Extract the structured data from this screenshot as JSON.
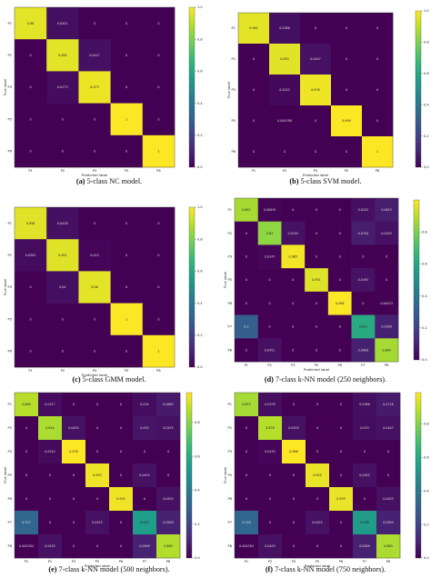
{
  "colormap": {
    "name": "viridis",
    "stops": [
      "#440154",
      "#482878",
      "#3e4989",
      "#31688e",
      "#26828e",
      "#1f9e89",
      "#35b779",
      "#6ece58",
      "#b5de2b",
      "#fde725"
    ]
  },
  "chart_data": [
    {
      "type": "heatmap",
      "caption_letter": "(a)",
      "caption": "5-class NC model.",
      "xlabel": "Predicted label",
      "ylabel": "True label",
      "labels": [
        "P1",
        "P2",
        "P3",
        "P5",
        "P6"
      ],
      "matrix": [
        [
          0.96,
          0.0401,
          0,
          0,
          0
        ],
        [
          0,
          0.958,
          0.0417,
          0,
          0
        ],
        [
          0,
          0.0273,
          0.973,
          0,
          0
        ],
        [
          0,
          0,
          0,
          1,
          0
        ],
        [
          0,
          0,
          0,
          0,
          1
        ]
      ],
      "cell_text": [
        [
          "0.96",
          "0.0401",
          "0",
          "0",
          "0"
        ],
        [
          "0",
          "0.958",
          "0.0417",
          "0",
          "0"
        ],
        [
          "0",
          "0.0273",
          "0.973",
          "0",
          "0"
        ],
        [
          "0",
          "0",
          "0",
          "1",
          "0"
        ],
        [
          "0",
          "0",
          "0",
          "0",
          "1"
        ]
      ],
      "colorbar_ticks": [
        "0.0",
        "0.2",
        "0.4",
        "0.6",
        "0.8",
        "1.0"
      ],
      "vmin": 0,
      "vmax": 1
    },
    {
      "type": "heatmap",
      "caption_letter": "(b)",
      "caption": "5-class SVM model.",
      "xlabel": "Predicted label",
      "ylabel": "True label",
      "labels": [
        "P1",
        "P2",
        "P3",
        "P5",
        "P6"
      ],
      "matrix": [
        [
          0.961,
          0.0386,
          0,
          0,
          0
        ],
        [
          0,
          0.955,
          0.0447,
          0,
          0
        ],
        [
          0,
          0.0242,
          0.976,
          0,
          0
        ],
        [
          0,
          0.000788,
          0,
          0.999,
          0
        ],
        [
          0,
          0,
          0,
          0,
          1
        ]
      ],
      "cell_text": [
        [
          "0.961",
          "0.0386",
          "0",
          "0",
          "0"
        ],
        [
          "0",
          "0.955",
          "0.0447",
          "0",
          "0"
        ],
        [
          "0",
          "0.0242",
          "0.976",
          "0",
          "0"
        ],
        [
          "0",
          "0.000788",
          "0",
          "0.999",
          "0"
        ],
        [
          "0",
          "0",
          "0",
          "0",
          "1"
        ]
      ],
      "colorbar_ticks": [
        "0.0",
        "0.2",
        "0.4",
        "0.6",
        "0.8",
        "1.0"
      ],
      "vmin": 0,
      "vmax": 1
    },
    {
      "type": "heatmap",
      "caption_letter": "(c)",
      "caption": "5-class GMM model.",
      "xlabel": "Predicted label",
      "ylabel": "True label",
      "labels": [
        "P1",
        "P2",
        "P3",
        "P5",
        "P6"
      ],
      "matrix": [
        [
          0.956,
          0.0438,
          0,
          0,
          0
        ],
        [
          0.0305,
          0.954,
          0.015,
          0,
          0
        ],
        [
          0,
          0.04,
          0.96,
          0,
          0
        ],
        [
          0,
          0,
          0,
          1,
          0
        ],
        [
          0,
          0,
          0,
          0,
          1
        ]
      ],
      "cell_text": [
        [
          "0.956",
          "0.0438",
          "0",
          "0",
          "0"
        ],
        [
          "0.0305",
          "0.954",
          "0.015",
          "0",
          "0"
        ],
        [
          "0",
          "0.04",
          "0.96",
          "0",
          "0"
        ],
        [
          "0",
          "0",
          "0",
          "1",
          "0"
        ],
        [
          "0",
          "0",
          "0",
          "0",
          "1"
        ]
      ],
      "colorbar_ticks": [
        "0.0",
        "0.2",
        "0.4",
        "0.6",
        "0.8",
        "1.0"
      ],
      "vmin": 0,
      "vmax": 1
    },
    {
      "type": "heatmap",
      "caption_letter": "(d)",
      "caption": "7-class k-NN model (250 neighbors).",
      "xlabel": "Predicted label",
      "ylabel": "True label",
      "labels": [
        "P1",
        "P2",
        "P3",
        "P5",
        "P6",
        "P7",
        "P8"
      ],
      "matrix": [
        [
          0.867,
          0.00839,
          0,
          0,
          0,
          0.0432,
          0.0815
        ],
        [
          0,
          0.83,
          0.0455,
          0,
          0,
          0.0794,
          0.0455
        ],
        [
          0,
          0.0147,
          0.985,
          0,
          0,
          0,
          0
        ],
        [
          0,
          0,
          0,
          0.951,
          0,
          0.0493,
          0
        ],
        [
          0,
          0,
          0,
          0,
          0.996,
          0,
          0.00423
        ],
        [
          0.3,
          0,
          0,
          0,
          0,
          0.611,
          0.0909
        ],
        [
          0,
          0.0451,
          0,
          0,
          0,
          0.0909,
          0.864
        ]
      ],
      "cell_text": [
        [
          "0.867",
          "0.00839",
          "0",
          "0",
          "0",
          "0.0432",
          "0.0815"
        ],
        [
          "0",
          "0.83",
          "0.0455",
          "0",
          "0",
          "0.0794",
          "0.0455"
        ],
        [
          "0",
          "0.0147",
          "0.985",
          "0",
          "0",
          "0",
          "0"
        ],
        [
          "0",
          "0",
          "0",
          "0.951",
          "0",
          "0.0493",
          "0"
        ],
        [
          "0",
          "0",
          "0",
          "0",
          "0.996",
          "0",
          "0.00423"
        ],
        [
          "0.3",
          "0",
          "0",
          "0",
          "0",
          "0.611",
          "0.0909"
        ],
        [
          "0",
          "0.0451",
          "0",
          "0",
          "0",
          "0.0909",
          "0.864"
        ]
      ],
      "colorbar_ticks": [
        "0.0",
        "0.2",
        "0.4",
        "0.6",
        "0.8"
      ],
      "vmin": 0,
      "vmax": 1
    },
    {
      "type": "heatmap",
      "caption_letter": "(e)",
      "caption": "7-class k-NN model (500 neighbors).",
      "xlabel": "Predicted label",
      "ylabel": "True label",
      "labels": [
        "P1",
        "P2",
        "P3",
        "P5",
        "P6",
        "P7",
        "P8"
      ],
      "matrix": [
        [
          0.869,
          0.0317,
          0,
          0,
          0,
          0.034,
          0.0685
        ],
        [
          0,
          0.854,
          0.0455,
          0,
          0,
          0.055,
          0.0455
        ],
        [
          0,
          0.0244,
          0.976,
          0,
          0,
          0,
          0
        ],
        [
          0,
          0,
          0,
          0.955,
          0,
          0.0455,
          0
        ],
        [
          0,
          0,
          0,
          0,
          0.955,
          0,
          0.0455
        ],
        [
          0.322,
          0,
          0,
          0.0455,
          0,
          0.542,
          0.0909
        ],
        [
          0.000764,
          0.0455,
          0,
          0,
          0,
          0.0909,
          0.863
        ]
      ],
      "cell_text": [
        [
          "0.869",
          "0.0317",
          "0",
          "0",
          "0",
          "0.034",
          "0.0685"
        ],
        [
          "0",
          "0.854",
          "0.0455",
          "0",
          "0",
          "0.055",
          "0.0455"
        ],
        [
          "0",
          "0.0244",
          "0.976",
          "0",
          "0",
          "0",
          "0"
        ],
        [
          "0",
          "0",
          "0",
          "0.955",
          "0",
          "0.0455",
          "0"
        ],
        [
          "0",
          "0",
          "0",
          "0",
          "0.955",
          "0",
          "0.0455"
        ],
        [
          "0.322",
          "0",
          "0",
          "0.0455",
          "0",
          "0.542",
          "0.0909"
        ],
        [
          "0.000764",
          "0.0455",
          "0",
          "0",
          "0",
          "0.0909",
          "0.863"
        ]
      ],
      "colorbar_ticks": [
        "0.0",
        "0.2",
        "0.4",
        "0.6",
        "0.8"
      ],
      "vmin": 0,
      "vmax": 0.976
    },
    {
      "type": "heatmap",
      "caption_letter": "(f)",
      "caption": "7-class k-NN model (750 neighbors).",
      "xlabel": "Predicted label",
      "ylabel": "True label",
      "labels": [
        "P1",
        "P2",
        "P3",
        "P5",
        "P6",
        "P7",
        "P8"
      ],
      "matrix": [
        [
          0.853,
          0.0378,
          0,
          0,
          0,
          0.0386,
          0.0716
        ],
        [
          0,
          0.876,
          0.0455,
          0,
          0,
          0.033,
          0.0447
        ],
        [
          0,
          0.0145,
          0.986,
          0,
          0,
          0,
          0
        ],
        [
          0,
          0,
          0,
          0.955,
          0,
          0.0455,
          0
        ],
        [
          0,
          0,
          0,
          0,
          0.955,
          0,
          0.0455
        ],
        [
          0.326,
          0,
          0,
          0.0455,
          0,
          0.538,
          0.0909
        ],
        [
          0.000764,
          0.0455,
          0,
          0,
          0,
          0.0909,
          0.863
        ]
      ],
      "cell_text": [
        [
          "0.853",
          "0.0378",
          "0",
          "0",
          "0",
          "0.0386",
          "0.0716"
        ],
        [
          "0",
          "0.876",
          "0.0455",
          "0",
          "0",
          "0.033",
          "0.0447"
        ],
        [
          "0",
          "0.0145",
          "0.986",
          "0",
          "0",
          "0",
          "0"
        ],
        [
          "0",
          "0",
          "0",
          "0.955",
          "0",
          "0.0455",
          "0"
        ],
        [
          "0",
          "0",
          "0",
          "0",
          "0.955",
          "0",
          "0.0455"
        ],
        [
          "0.326",
          "0",
          "0",
          "0.0455",
          "0",
          "0.538",
          "0.0909"
        ],
        [
          "0.000764",
          "0.0455",
          "0",
          "0",
          "0",
          "0.0909",
          "0.863"
        ]
      ],
      "colorbar_ticks": [
        "0.0",
        "0.2",
        "0.4",
        "0.6",
        "0.8"
      ],
      "vmin": 0,
      "vmax": 0.986
    }
  ]
}
